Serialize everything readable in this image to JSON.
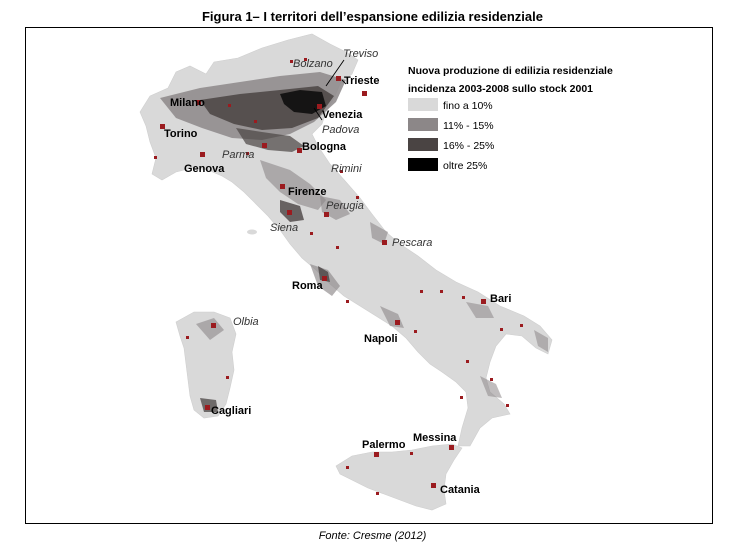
{
  "title": "Figura 1– I territori dell’espansione edilizia residenziale",
  "source": "Fonte: Cresme (2012)",
  "legend": {
    "title_line1": "Nuova produzione di edilizia residenziale",
    "title_line2": "incidenza 2003-2008 sullo stock 2001",
    "items": [
      {
        "label": "fino a 10%",
        "color": "#d9d9d9"
      },
      {
        "label": "11% - 15%",
        "color": "#8c8788"
      },
      {
        "label": "16% - 25%",
        "color": "#4a4443"
      },
      {
        "label": "oltre 25%",
        "color": "#000000"
      }
    ]
  },
  "cities_bold": [
    "Milano",
    "Torino",
    "Genova",
    "Bologna",
    "Venezia",
    "Trieste",
    "Firenze",
    "Roma",
    "Napoli",
    "Bari",
    "Cagliari",
    "Palermo",
    "Messina",
    "Catania"
  ],
  "cities_italic": [
    "Treviso",
    "Bolzano",
    "Padova",
    "Parma",
    "Rimini",
    "Perugia",
    "Siena",
    "Pescara",
    "Olbia"
  ],
  "marker_color": "#9b1b1f"
}
